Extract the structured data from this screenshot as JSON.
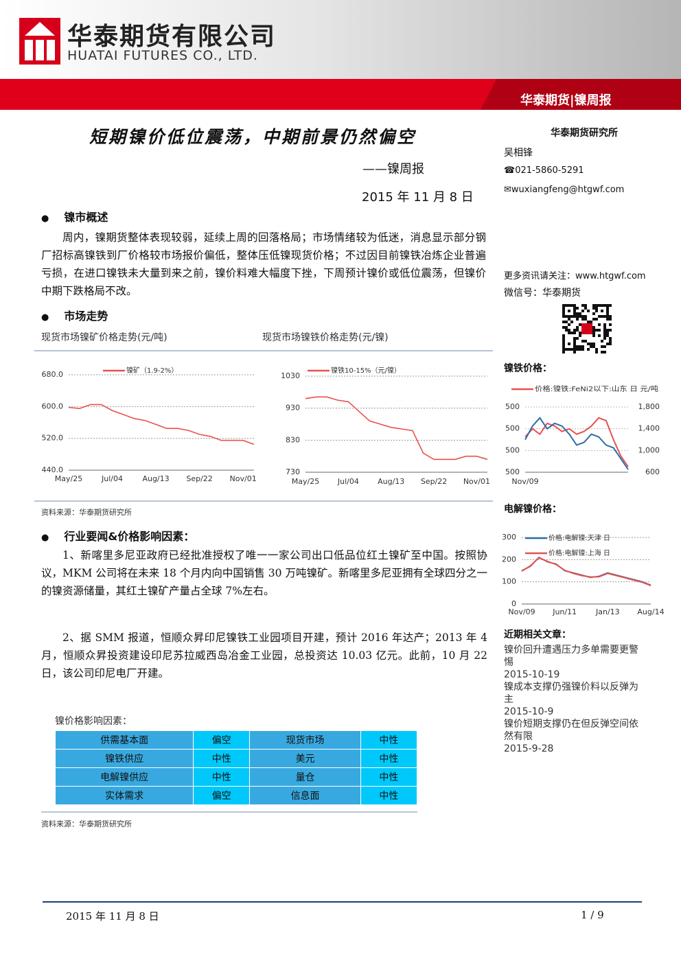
{
  "header": {
    "company_cn": "华泰期货有限公司",
    "company_en": "HUATAI FUTURES CO., LTD.",
    "tag": "华泰期货|镍周报"
  },
  "title": "短期镍价低位震荡，中期前景仍然偏空",
  "subtitle": "——镍周报",
  "date": "2015 年 11 月 8 日",
  "sidebar": {
    "institute": "华泰期货研究所",
    "author": "吴相锋",
    "phone": "☎021-5860-5291",
    "email": "✉wuxiangfeng@htgwf.com",
    "follow": "更多资讯请关注：www.htgwf.com",
    "wechat": "微信号：华泰期货",
    "related_title": "近期相关文章：",
    "articles": [
      {
        "title": "镍价回升遭遇压力多单需要更警惕",
        "date": "2015-10-19"
      },
      {
        "title": "镍成本支撑仍强镍价料以反弹为主",
        "date": "2015-10-9"
      },
      {
        "title": "镍价短期支撑仍在但反弹空间依然有限",
        "date": "2015-9-28"
      }
    ]
  },
  "sections": {
    "overview_heading": "镍市概述",
    "overview_text": "周内，镍期货整体表现较弱，延续上周的回落格局；市场情绪较为低迷，消息显示部分钢厂招标高镍铁到厂价格较市场报价偏低，整体压低镍现货价格；不过因目前镍铁冶炼企业普遍亏损，在进口镍铁未大量到来之前，镍价料难大幅度下挫，下周预计镍价或低位震荡，但镍价中期下跌格局不改。",
    "market_heading": "市场走势",
    "chart_source": "资料来源：华泰期货研究所",
    "industry_heading": "行业要闻&价格影响因素：",
    "industry_paragraphs": [
      "1、新喀里多尼亚政府已经批准授权了唯一一家公司出口低品位红土镍矿至中国。按照协议，MKM 公司将在未来 18 个月内向中国销售 30 万吨镍矿。新喀里多尼亚拥有全球四分之一的镍资源储量，其红土镍矿产量占全球 7%左右。",
      "2、据 SMM 报道，恒顺众昇印尼镍铁工业园项目开建，预计 2016 年达产；2013 年 4 月，恒顺众昇投资建设印尼苏拉威西岛冶金工业园，总投资达 10.03 亿元。此前，10 月 22 日，该公司印尼电厂开建。"
    ],
    "table_caption": "镍价格影响因素：",
    "table_source": "资料来源：华泰期货研究所"
  },
  "table": {
    "rows": [
      [
        "供需基本面",
        "偏空",
        "现货市场",
        "中性"
      ],
      [
        "镍铁供应",
        "中性",
        "美元",
        "中性"
      ],
      [
        "电解镍供应",
        "中性",
        "量仓",
        "中性"
      ],
      [
        "实体需求",
        "偏空",
        "信息面",
        "中性"
      ]
    ]
  },
  "charts": [
    {
      "type": "line",
      "title": "现货市场镍矿价格走势(元/吨)",
      "categories": [
        "May/25",
        null,
        null,
        null,
        "Jul/04",
        null,
        null,
        null,
        "Aug/13",
        null,
        null,
        null,
        "Sep/22",
        null,
        null,
        null,
        "Nov/01",
        null
      ],
      "series": [
        {
          "name": "镍矿（1.9-2%）",
          "color": "#e8504f",
          "values": [
            598,
            595,
            605,
            605,
            590,
            580,
            570,
            565,
            555,
            545,
            545,
            540,
            530,
            525,
            515,
            515,
            515,
            505
          ]
        }
      ],
      "ylim": [
        440,
        680
      ],
      "yticks": [
        {
          "value": 440,
          "label": "440.0"
        },
        {
          "value": 520,
          "label": "520.0"
        },
        {
          "value": 600,
          "label": "600.0"
        },
        {
          "value": 680,
          "label": "680.0"
        }
      ],
      "grid": true
    },
    {
      "type": "line",
      "title": "现货市场镍铁价格走势(元/镍)",
      "categories": [
        "May/25",
        null,
        null,
        null,
        "Jul/04",
        null,
        null,
        null,
        "Aug/13",
        null,
        null,
        null,
        "Sep/22",
        null,
        null,
        null,
        "Nov/01",
        null
      ],
      "series": [
        {
          "name": "镍铁10-15%（元/镍）",
          "color": "#e8504f",
          "values": [
            960,
            965,
            965,
            955,
            950,
            920,
            890,
            880,
            870,
            865,
            860,
            790,
            770,
            770,
            770,
            780,
            780,
            770
          ]
        }
      ],
      "ylim": [
        730,
        1030
      ],
      "yticks": [
        730,
        830,
        930,
        1030
      ],
      "grid": true
    },
    {
      "type": "line",
      "title": "镍铁价格：",
      "categories": [
        "Nov/09",
        null,
        null,
        null,
        null,
        null,
        null,
        null,
        null,
        null,
        null,
        null,
        null,
        null,
        null
      ],
      "y_labels": [
        "500",
        "500",
        "500",
        "500"
      ],
      "series": [
        {
          "name": "价格:镍铁:FeNi2以下:山东 日 元/吨",
          "color": "#e8504f",
          "axis": "y2",
          "values": [
            1250,
            1400,
            1300,
            1500,
            1450,
            1350,
            1400,
            1300,
            1350,
            1450,
            1600,
            1550,
            1200,
            900,
            700
          ]
        },
        {
          "color": "#2e6da4",
          "axis": "y2",
          "values": [
            1200,
            1450,
            1600,
            1400,
            1500,
            1450,
            1300,
            1100,
            1150,
            1300,
            1250,
            1100,
            1050,
            850,
            650
          ]
        }
      ],
      "y2lim": [
        600,
        1800
      ],
      "y2ticks": [
        600,
        {
          "value": 1000,
          "label": "1,000"
        },
        {
          "value": 1400,
          "label": "1,400"
        },
        {
          "value": 1800,
          "label": "1,800"
        }
      ],
      "grid": true
    },
    {
      "type": "line",
      "title": "电解镍价格：",
      "categories": [
        "Nov/09",
        null,
        null,
        null,
        null,
        "Jun/11",
        null,
        null,
        null,
        null,
        "Jan/13",
        null,
        null,
        null,
        null,
        "Aug/14"
      ],
      "series": [
        {
          "name": "价格:电解镍:天津 日",
          "color": "#2e6da4",
          "values": [
            150,
            170,
            210,
            190,
            180,
            150,
            140,
            130,
            120,
            125,
            140,
            130,
            120,
            110,
            100,
            85
          ]
        },
        {
          "name": "价格:电解镍:上海 日",
          "color": "#e8504f",
          "values": [
            148,
            172,
            208,
            192,
            178,
            152,
            138,
            128,
            122,
            123,
            138,
            128,
            118,
            108,
            98,
            83
          ]
        }
      ],
      "ylim": [
        0,
        300
      ],
      "yticks": [
        0,
        100,
        200,
        300
      ],
      "grid": true
    }
  ],
  "footer": {
    "date": "2015 年 11 月 8 日",
    "page": "1 / 9"
  }
}
